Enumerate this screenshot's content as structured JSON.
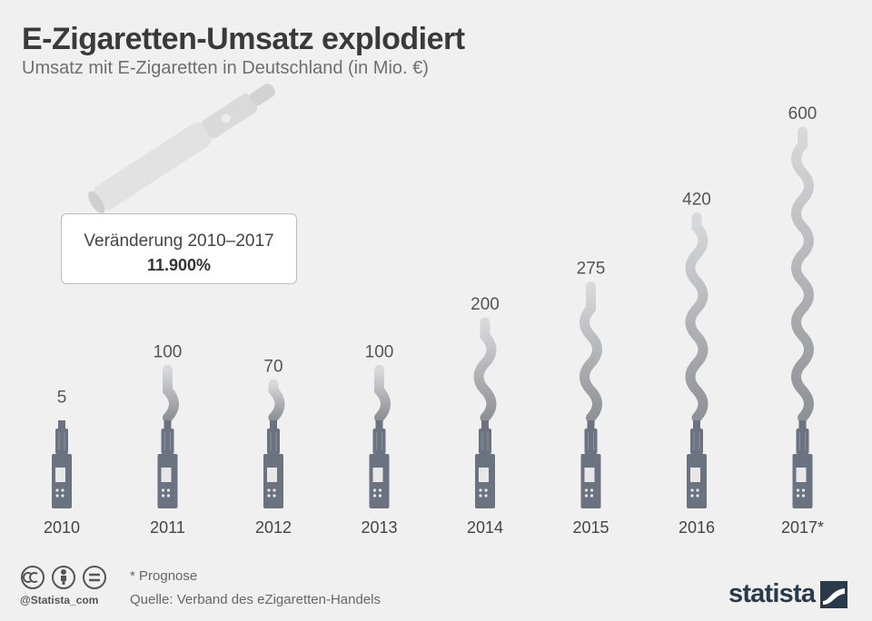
{
  "header": {
    "title": "E-Zigaretten-Umsatz explodiert",
    "subtitle": "Umsatz mit E-Zigaretten in Deutschland (in Mio. €)"
  },
  "callout": {
    "line1": "Veränderung 2010–2017",
    "line2": "11.900%"
  },
  "footer": {
    "footnote": "* Prognose",
    "source": "Quelle: Verband des eZigaretten-Handels",
    "handle": "@Statista_com",
    "logo": "statista"
  },
  "colors": {
    "background": "#f0f0f0",
    "device": "#6b7380",
    "smoke": "#8c8f93",
    "text": "#444444"
  },
  "chart_data": {
    "type": "bar",
    "categories": [
      "2010",
      "2011",
      "2012",
      "2013",
      "2014",
      "2015",
      "2016",
      "2017*"
    ],
    "values": [
      5,
      100,
      70,
      100,
      200,
      275,
      420,
      600
    ],
    "title": "E-Zigaretten-Umsatz explodiert",
    "subtitle": "Umsatz mit E-Zigaretten in Deutschland (in Mio. €)",
    "xlabel": "",
    "ylabel": "",
    "ylim": [
      0,
      600
    ],
    "grid": false,
    "legend": "none"
  }
}
